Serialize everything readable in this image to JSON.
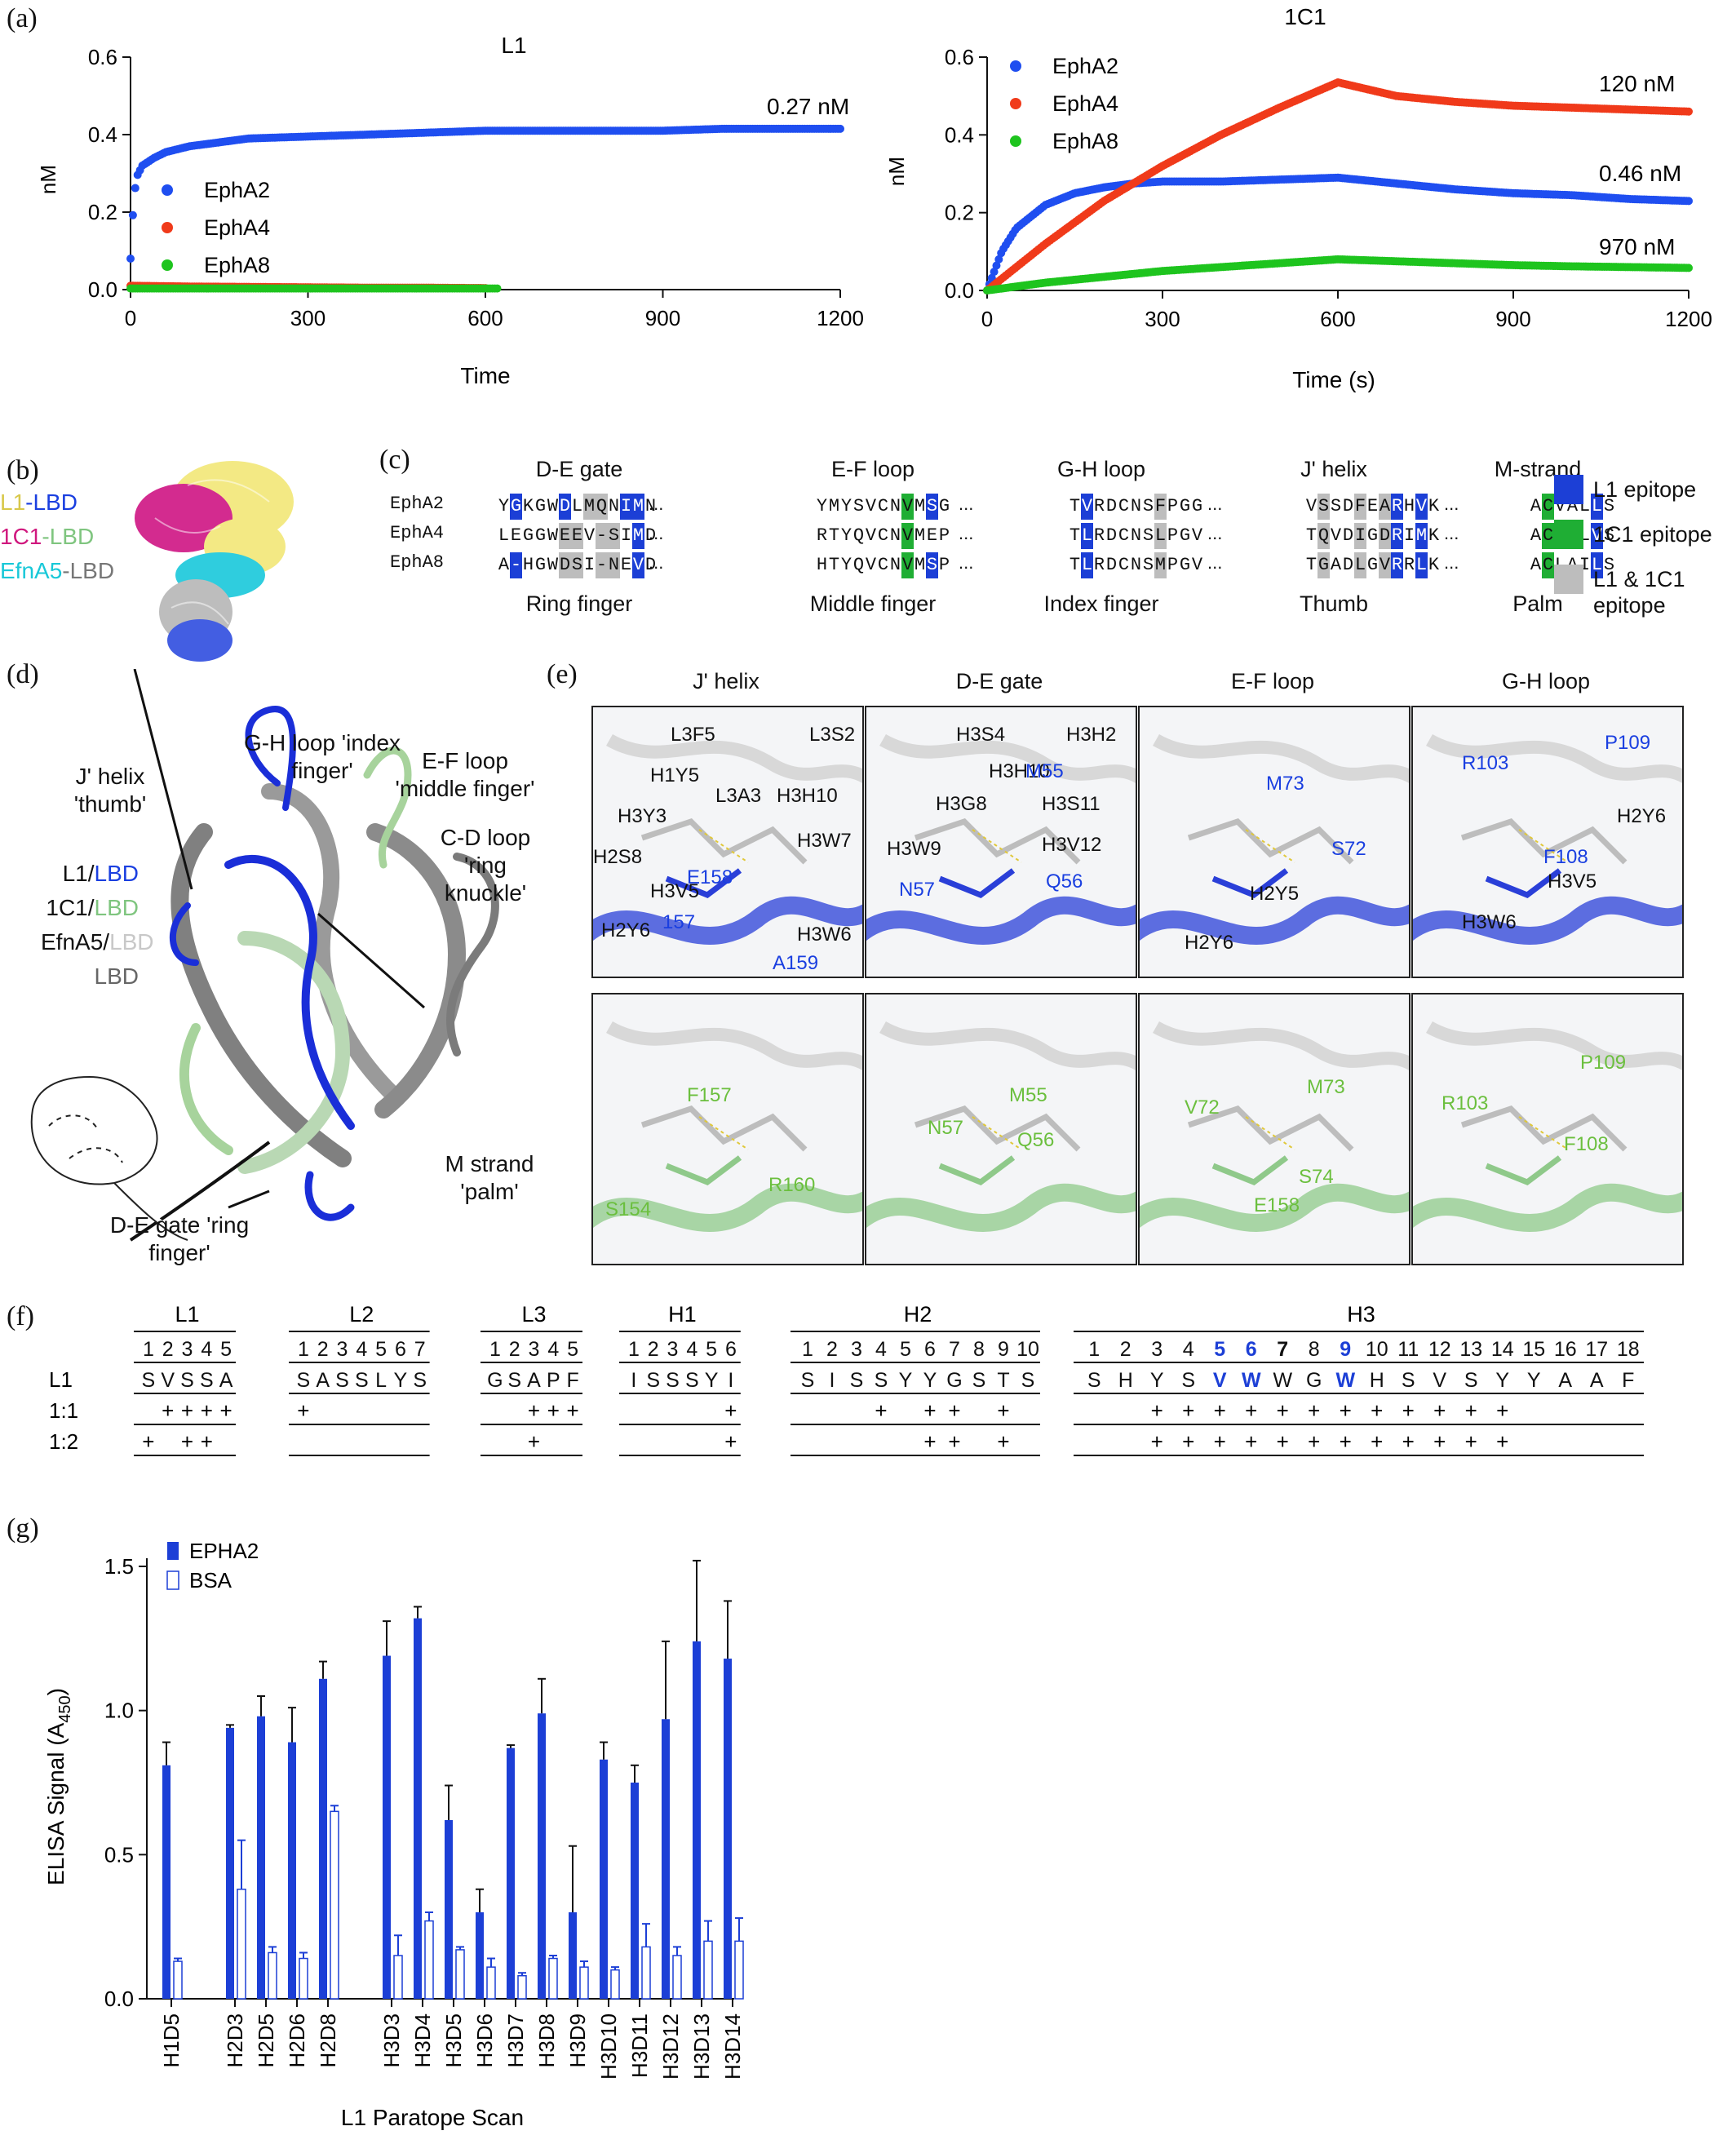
{
  "panel_letters": [
    "(a)",
    "(b)",
    "(c)",
    "(d)",
    "(e)",
    "(f)",
    "(g)"
  ],
  "panel_a": {
    "left": {
      "title": "L1",
      "ylabel": "nM",
      "xlabel": "Time",
      "yticks": [
        "0.0",
        "0.2",
        "0.4",
        "0.6"
      ],
      "xticks": [
        "0",
        "300",
        "600",
        "900",
        "1200"
      ],
      "legend": [
        {
          "name": "EphA2",
          "color": "#1f4ef0"
        },
        {
          "name": "EphA4",
          "color": "#f03a1a"
        },
        {
          "name": "EphA8",
          "color": "#1ec41e"
        }
      ],
      "annotation": "0.27 nM"
    },
    "right": {
      "title": "1C1",
      "ylabel": "nM",
      "xlabel": "Time (s)",
      "yticks": [
        "0.0",
        "0.2",
        "0.4",
        "0.6"
      ],
      "xticks": [
        "0",
        "300",
        "600",
        "900",
        "1200"
      ],
      "legend": [
        {
          "name": "EphA2",
          "color": "#1f4ef0"
        },
        {
          "name": "EphA4",
          "color": "#f03a1a"
        },
        {
          "name": "EphA8",
          "color": "#1ec41e"
        }
      ],
      "annotations": [
        "120 nM",
        "0.46 nM",
        "970 nM"
      ]
    }
  },
  "chart_data": [
    {
      "type": "scatter",
      "title": "L1",
      "xlabel": "Time",
      "ylabel": "nM",
      "xlim": [
        0,
        1200
      ],
      "ylim": [
        0,
        0.6
      ],
      "legend": "upper-left inside",
      "series": [
        {
          "name": "EphA2",
          "color": "#1f4ef0",
          "x": [
            0,
            5,
            10,
            20,
            40,
            60,
            100,
            150,
            200,
            300,
            400,
            500,
            600,
            700,
            800,
            900,
            1000,
            1100,
            1200
          ],
          "y": [
            0.08,
            0.22,
            0.29,
            0.32,
            0.34,
            0.355,
            0.37,
            0.38,
            0.39,
            0.395,
            0.4,
            0.405,
            0.41,
            0.41,
            0.41,
            0.41,
            0.415,
            0.415,
            0.415
          ]
        },
        {
          "name": "EphA4",
          "color": "#f03a1a",
          "x": [
            0,
            100,
            200,
            300,
            400,
            500,
            600
          ],
          "y": [
            0.01,
            0.008,
            0.007,
            0.006,
            0.005,
            0.005,
            0.004
          ]
        },
        {
          "name": "EphA8",
          "color": "#1ec41e",
          "x": [
            0,
            100,
            200,
            300,
            400,
            500,
            600,
            620
          ],
          "y": [
            0.003,
            0.003,
            0.003,
            0.003,
            0.003,
            0.003,
            0.003,
            0.003
          ]
        }
      ],
      "annotations": [
        {
          "text": "0.27 nM"
        }
      ]
    },
    {
      "type": "scatter",
      "title": "1C1",
      "xlabel": "Time (s)",
      "ylabel": "nM",
      "xlim": [
        0,
        1200
      ],
      "ylim": [
        0,
        0.6
      ],
      "legend": "upper-left inside",
      "series": [
        {
          "name": "EphA2",
          "color": "#1f4ef0",
          "x": [
            0,
            25,
            50,
            100,
            150,
            200,
            250,
            300,
            400,
            500,
            600,
            700,
            800,
            900,
            1000,
            1100,
            1200
          ],
          "y": [
            0.0,
            0.1,
            0.16,
            0.22,
            0.25,
            0.265,
            0.275,
            0.28,
            0.28,
            0.285,
            0.29,
            0.275,
            0.26,
            0.25,
            0.245,
            0.235,
            0.23
          ]
        },
        {
          "name": "EphA4",
          "color": "#f03a1a",
          "x": [
            0,
            50,
            100,
            200,
            300,
            400,
            500,
            600,
            700,
            800,
            900,
            1000,
            1100,
            1200
          ],
          "y": [
            0.0,
            0.06,
            0.12,
            0.23,
            0.32,
            0.4,
            0.47,
            0.535,
            0.5,
            0.485,
            0.475,
            0.47,
            0.465,
            0.46
          ]
        },
        {
          "name": "EphA8",
          "color": "#1ec41e",
          "x": [
            0,
            50,
            100,
            200,
            300,
            400,
            500,
            600,
            700,
            800,
            900,
            1000,
            1100,
            1200
          ],
          "y": [
            0.0,
            0.01,
            0.02,
            0.035,
            0.05,
            0.06,
            0.07,
            0.08,
            0.075,
            0.07,
            0.065,
            0.062,
            0.06,
            0.058
          ]
        }
      ],
      "annotations": [
        {
          "text": "120 nM"
        },
        {
          "text": "0.46 nM"
        },
        {
          "text": "970 nM"
        }
      ]
    },
    {
      "type": "bar",
      "ylabel": "ELISA Signal (A450)",
      "xlabel": "L1 Paratope Scan",
      "ylim": [
        0,
        1.5
      ],
      "legend": "upper-left inside",
      "categories": [
        "H1D5",
        "H2D3",
        "H2D5",
        "H2D6",
        "H2D8",
        "H3D3",
        "H3D4",
        "H3D5",
        "H3D6",
        "H3D7",
        "H3D8",
        "H3D9",
        "H3D10",
        "H3D11",
        "H3D12",
        "H3D13",
        "H3D14"
      ],
      "series": [
        {
          "name": "EPHA2",
          "color": "#1c3fd6",
          "values": [
            0.81,
            0.94,
            0.98,
            0.89,
            1.11,
            1.19,
            1.32,
            0.62,
            0.3,
            0.87,
            0.99,
            0.3,
            0.83,
            0.75,
            0.97,
            1.24,
            1.18
          ],
          "errors": [
            0.08,
            0.01,
            0.07,
            0.12,
            0.06,
            0.12,
            0.04,
            0.12,
            0.08,
            0.01,
            0.12,
            0.23,
            0.06,
            0.06,
            0.27,
            0.28,
            0.2
          ]
        },
        {
          "name": "BSA",
          "color": "#1c3fd6",
          "values": [
            0.13,
            0.38,
            0.16,
            0.14,
            0.65,
            0.15,
            0.27,
            0.17,
            0.11,
            0.08,
            0.14,
            0.11,
            0.1,
            0.18,
            0.15,
            0.2,
            0.2
          ],
          "errors": [
            0.01,
            0.17,
            0.02,
            0.02,
            0.02,
            0.07,
            0.03,
            0.01,
            0.03,
            0.01,
            0.01,
            0.02,
            0.01,
            0.08,
            0.03,
            0.07,
            0.08
          ]
        }
      ]
    }
  ],
  "panel_b": {
    "labels": [
      {
        "left": "L1",
        "left_color": "#d8c84a",
        "right": "-LBD",
        "right_color": "#1a3fe0"
      },
      {
        "left": "1C1",
        "left_color": "#d0187e",
        "right": "-LBD",
        "right_color": "#7fc57f"
      },
      {
        "left": "EfnA5",
        "left_color": "#18c8d8",
        "right": "-LBD",
        "right_color": "#777777"
      }
    ]
  },
  "panel_c": {
    "regions": [
      {
        "top": "D-E gate",
        "bottom": "Ring finger"
      },
      {
        "top": "E-F loop",
        "bottom": "Middle finger"
      },
      {
        "top": "G-H loop",
        "bottom": "Index finger"
      },
      {
        "top": "J' helix",
        "bottom": "Thumb"
      },
      {
        "top": "M-strand",
        "bottom": "Palm"
      }
    ],
    "rows": [
      {
        "name": "EphA2",
        "segments": [
          "YGKGWDLMQNIMN",
          "YMYSVCNVMSG",
          "TVRDCNSFPGG",
          "VSSDFEARHVK",
          "ACVALLS"
        ]
      },
      {
        "name": "EphA4",
        "segments": [
          "LEGGWEEV-SIMD",
          "RTYQVCNVMEP",
          "TLRDCNSLPGV",
          "TQVDIGDRIMK",
          "ACIALVS"
        ]
      },
      {
        "name": "EphA8",
        "segments": [
          "A-HGWDSI-NEVD",
          "HTYQVCNVMSP",
          "TLRDCNSMPGV",
          "TGADLGVRRLK",
          "ACLAILS"
        ]
      }
    ],
    "ellipsis": "...",
    "legend": [
      {
        "label": "L1 epitope",
        "color": "#1c3fd6"
      },
      {
        "label": "1C1 epitope",
        "color": "#1fae34"
      },
      {
        "label": "L1 & 1C1 epitope",
        "color": "#bdbdbd"
      }
    ]
  },
  "panel_d": {
    "labels": [
      "G-H loop 'index finger'",
      "E-F loop 'middle finger'",
      "J' helix 'thumb'",
      "C-D loop 'ring knuckle'",
      "M strand 'palm'",
      "D-E gate 'ring finger'"
    ],
    "legend": [
      {
        "left": "L1",
        "left_color": "#111111",
        "right": "LBD",
        "right_color": "#1a3fe0"
      },
      {
        "left": "1C1",
        "left_color": "#111111",
        "right": "LBD",
        "right_color": "#7fc57f"
      },
      {
        "left": "EfnA5",
        "left_color": "#111111",
        "right": "LBD",
        "right_color": "#cccccc"
      },
      {
        "left": "",
        "left_color": "#111111",
        "right": "LBD",
        "right_color": "#777777"
      }
    ]
  },
  "panel_e": {
    "columns": [
      "J' helix",
      "D-E gate",
      "E-F loop",
      "G-H loop"
    ],
    "top_row": [
      {
        "blue": [
          "E158",
          "157",
          "A159"
        ],
        "black": [
          "L3F5",
          "L3S2",
          "H1Y5",
          "L3A3",
          "H3H10",
          "H3Y3",
          "H3W7",
          "H2S8",
          "H3V5",
          "H2Y6",
          "H3W6"
        ]
      },
      {
        "blue": [
          "M55",
          "N57",
          "Q56"
        ],
        "black": [
          "H3S4",
          "H3H2",
          "H3H10",
          "H3G8",
          "H3S11",
          "H3W9",
          "H3V12"
        ]
      },
      {
        "blue": [
          "M73",
          "S72"
        ],
        "black": [
          "H2Y5",
          "H2Y6"
        ]
      },
      {
        "blue": [
          "R103",
          "P109",
          "F108"
        ],
        "black": [
          "H2Y6",
          "H3V5",
          "H3W6"
        ]
      }
    ],
    "bottom_row": [
      {
        "green": [
          "F157",
          "S154",
          "R160"
        ]
      },
      {
        "green": [
          "M55",
          "N57",
          "Q56"
        ]
      },
      {
        "green": [
          "M73",
          "V72",
          "S74",
          "E158"
        ]
      },
      {
        "green": [
          "R103",
          "P109",
          "F108"
        ]
      }
    ]
  },
  "panel_f": {
    "groups": [
      {
        "name": "L1",
        "numbers": [
          "1",
          "2",
          "3",
          "4",
          "5"
        ],
        "seq": [
          "S",
          "V",
          "S",
          "S",
          "A"
        ],
        "r11": [
          "",
          "+",
          "+",
          "+",
          "+"
        ],
        "r12": [
          "+",
          "",
          "+",
          "+",
          ""
        ]
      },
      {
        "name": "L2",
        "numbers": [
          "1",
          "2",
          "3",
          "4",
          "5",
          "6",
          "7"
        ],
        "seq": [
          "S",
          "A",
          "S",
          "S",
          "L",
          "Y",
          "S"
        ],
        "r11": [
          "+",
          "",
          "",
          "",
          "",
          "",
          ""
        ],
        "r12": [
          "",
          "",
          "",
          "",
          "",
          "",
          ""
        ]
      },
      {
        "name": "L3",
        "numbers": [
          "1",
          "2",
          "3",
          "4",
          "5"
        ],
        "seq": [
          "G",
          "S",
          "A",
          "P",
          "F"
        ],
        "r11": [
          "",
          "",
          "+",
          "+",
          "+"
        ],
        "r12": [
          "",
          "",
          "+",
          "",
          ""
        ]
      },
      {
        "name": "H1",
        "numbers": [
          "1",
          "2",
          "3",
          "4",
          "5",
          "6"
        ],
        "seq": [
          "I",
          "S",
          "S",
          "S",
          "Y",
          "I"
        ],
        "r11": [
          "",
          "",
          "",
          "",
          "",
          "+"
        ],
        "r12": [
          "",
          "",
          "",
          "",
          "",
          "+"
        ]
      },
      {
        "name": "H2",
        "numbers": [
          "1",
          "2",
          "3",
          "4",
          "5",
          "6",
          "7",
          "8",
          "9",
          "10"
        ],
        "seq": [
          "S",
          "I",
          "S",
          "S",
          "Y",
          "Y",
          "G",
          "S",
          "T",
          "S"
        ],
        "r11": [
          "",
          "",
          "",
          "+",
          "",
          "+",
          "+",
          "",
          "+",
          ""
        ],
        "r12": [
          "",
          "",
          "",
          "",
          "",
          "+",
          "+",
          "",
          "+",
          ""
        ]
      },
      {
        "name": "H3",
        "numbers": [
          "1",
          "2",
          "3",
          "4",
          "5",
          "6",
          "7",
          "8",
          "9",
          "10",
          "11",
          "12",
          "13",
          "14",
          "15",
          "16",
          "17",
          "18"
        ],
        "seq": [
          "S",
          "H",
          "Y",
          "S",
          "V",
          "W",
          "W",
          "G",
          "W",
          "H",
          "S",
          "V",
          "S",
          "Y",
          "Y",
          "A",
          "A",
          "F"
        ],
        "r11": [
          "",
          "",
          "+",
          "+",
          "+",
          "+",
          "+",
          "+",
          "+",
          "+",
          "+",
          "+",
          "+",
          "+",
          "",
          "",
          "",
          ""
        ],
        "r12": [
          "",
          "",
          "+",
          "+",
          "+",
          "+",
          "+",
          "+",
          "+",
          "+",
          "+",
          "+",
          "+",
          "+",
          "",
          "",
          "",
          ""
        ]
      }
    ],
    "row_labels": [
      "L1",
      "1:1",
      "1:2"
    ],
    "highlight_blue_h3": [
      4,
      5,
      8
    ],
    "highlight_bold_h3": [
      6
    ]
  },
  "panel_g": {
    "ylabel_main": "ELISA Signal (A",
    "ylabel_sub": "450",
    "ylabel_end": ")",
    "xlabel": "L1 Paratope Scan",
    "yticks": [
      "0.0",
      "0.5",
      "1.0",
      "1.5"
    ],
    "legend": [
      "EPHA2",
      "BSA"
    ]
  }
}
